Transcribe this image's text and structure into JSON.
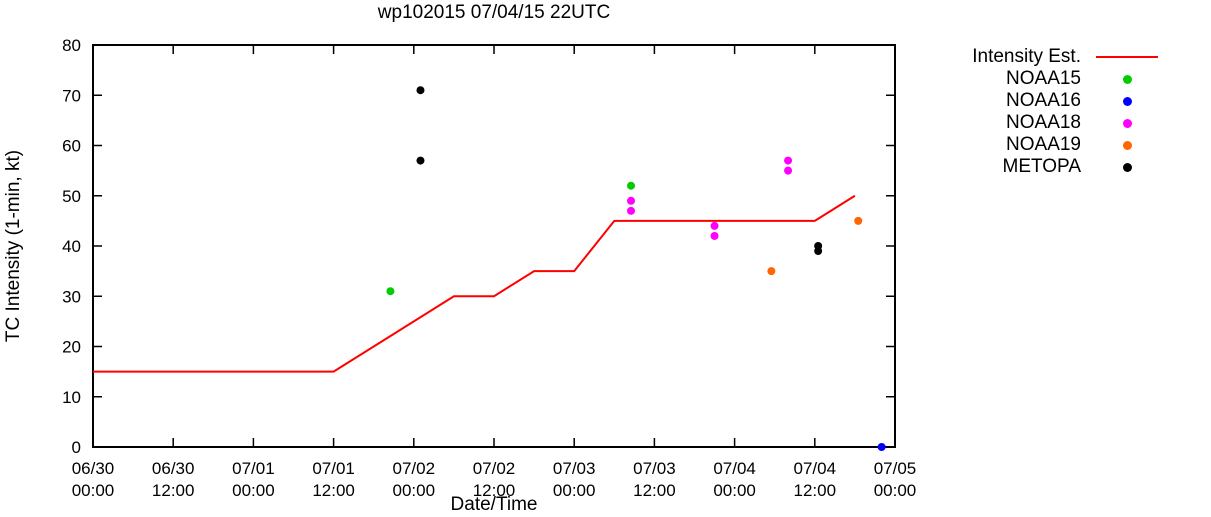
{
  "page": {
    "background": "#ffffff",
    "axis_color": "#000000"
  },
  "chart_data": {
    "type": "line+scatter",
    "title": "wp102015 07/04/15 22UTC",
    "xlabel": "Date/Time",
    "ylabel": "TC Intensity (1-min, kt)",
    "ylim": [
      0,
      80
    ],
    "yticks": [
      0,
      10,
      20,
      30,
      40,
      50,
      60,
      70,
      80
    ],
    "xlim_hours": [
      0,
      120
    ],
    "xticks": [
      {
        "hours": 0,
        "date": "06/30",
        "time": "00:00"
      },
      {
        "hours": 12,
        "date": "06/30",
        "time": "12:00"
      },
      {
        "hours": 24,
        "date": "07/01",
        "time": "00:00"
      },
      {
        "hours": 36,
        "date": "07/01",
        "time": "12:00"
      },
      {
        "hours": 48,
        "date": "07/02",
        "time": "00:00"
      },
      {
        "hours": 60,
        "date": "07/02",
        "time": "12:00"
      },
      {
        "hours": 72,
        "date": "07/03",
        "time": "00:00"
      },
      {
        "hours": 84,
        "date": "07/03",
        "time": "12:00"
      },
      {
        "hours": 96,
        "date": "07/04",
        "time": "00:00"
      },
      {
        "hours": 108,
        "date": "07/04",
        "time": "12:00"
      },
      {
        "hours": 120,
        "date": "07/05",
        "time": "00:00"
      }
    ],
    "line_series": {
      "name": "Intensity Est.",
      "color": "#ff0000",
      "points": [
        [
          0,
          15
        ],
        [
          36,
          15
        ],
        [
          54,
          30
        ],
        [
          60,
          30
        ],
        [
          66,
          35
        ],
        [
          72,
          35
        ],
        [
          78,
          45
        ],
        [
          108,
          45
        ],
        [
          114,
          50
        ]
      ]
    },
    "scatter_series": [
      {
        "name": "NOAA15",
        "color": "#00cc00",
        "points": [
          [
            44.5,
            31
          ],
          [
            80.5,
            52
          ]
        ]
      },
      {
        "name": "NOAA16",
        "color": "#0000ff",
        "points": [
          [
            118,
            0
          ]
        ]
      },
      {
        "name": "NOAA18",
        "color": "#ff00ff",
        "points": [
          [
            80.5,
            49
          ],
          [
            80.5,
            47
          ],
          [
            93,
            44
          ],
          [
            93,
            42
          ],
          [
            104,
            57
          ],
          [
            104,
            55
          ]
        ]
      },
      {
        "name": "NOAA19",
        "color": "#ff6600",
        "points": [
          [
            101.5,
            35
          ],
          [
            114.5,
            45
          ]
        ]
      },
      {
        "name": "METOPA",
        "color": "#000000",
        "points": [
          [
            49,
            71
          ],
          [
            49,
            57
          ],
          [
            108.5,
            40
          ],
          [
            108.5,
            39
          ]
        ]
      }
    ],
    "legend_position": "top-right",
    "grid": false
  }
}
